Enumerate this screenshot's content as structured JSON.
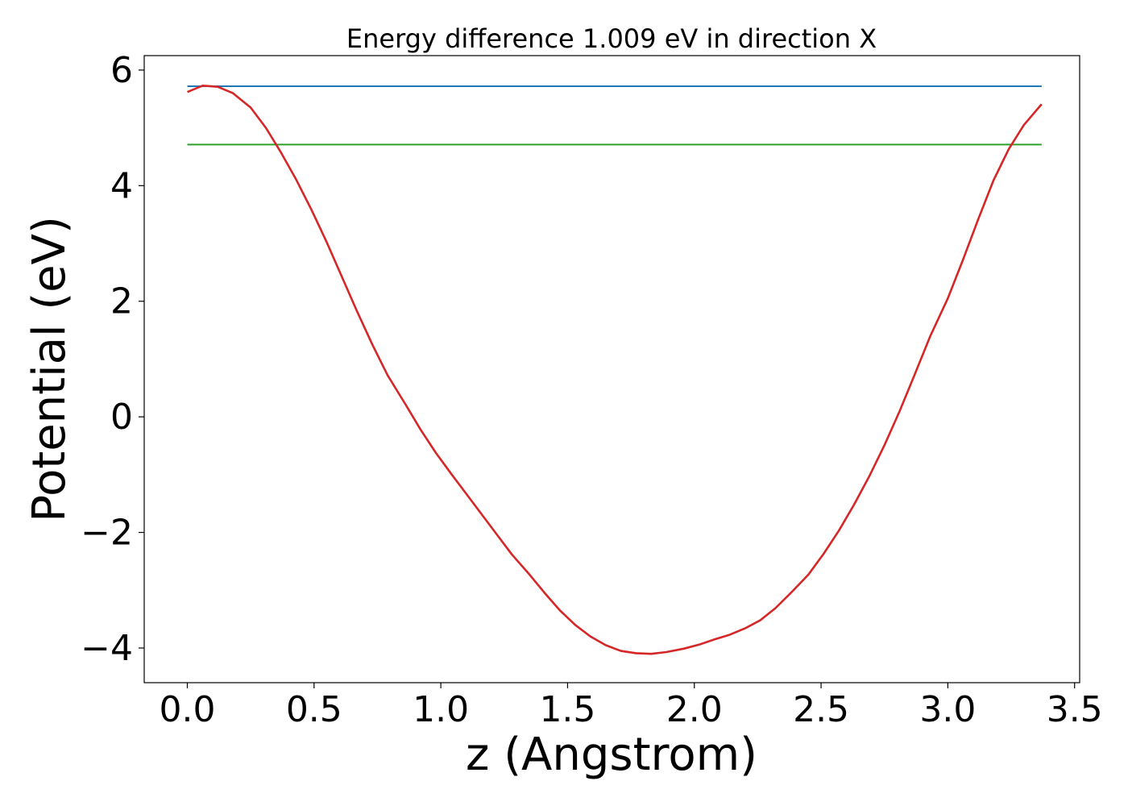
{
  "chart_data": {
    "type": "line",
    "title": "Energy difference 1.009 eV in direction X",
    "xlabel": "z (Angstrom)",
    "ylabel": "Potential (eV)",
    "xlim": [
      -0.17,
      3.52
    ],
    "ylim": [
      -4.6,
      6.25
    ],
    "x_ticks": [
      0.0,
      0.5,
      1.0,
      1.5,
      2.0,
      2.5,
      3.0,
      3.5
    ],
    "x_tick_labels": [
      "0.0",
      "0.5",
      "1.0",
      "1.5",
      "2.0",
      "2.5",
      "3.0",
      "3.5"
    ],
    "y_ticks": [
      -4,
      -2,
      0,
      2,
      4,
      6
    ],
    "y_tick_labels": [
      "−4",
      "−2",
      "0",
      "2",
      "4",
      "6"
    ],
    "grid": false,
    "series": [
      {
        "color": "#1f77b4",
        "x": [
          0.0,
          3.37
        ],
        "y": [
          5.72,
          5.72
        ]
      },
      {
        "color": "#2ca02c",
        "x": [
          0.0,
          3.37
        ],
        "y": [
          4.71,
          4.71
        ]
      },
      {
        "color": "#d62728",
        "x": [
          0.0,
          0.06,
          0.12,
          0.18,
          0.25,
          0.31,
          0.37,
          0.43,
          0.49,
          0.55,
          0.61,
          0.67,
          0.73,
          0.79,
          0.86,
          0.92,
          0.98,
          1.04,
          1.1,
          1.16,
          1.22,
          1.28,
          1.35,
          1.41,
          1.47,
          1.53,
          1.59,
          1.65,
          1.71,
          1.77,
          1.83,
          1.89,
          1.96,
          2.02,
          2.08,
          2.14,
          2.2,
          2.26,
          2.32,
          2.38,
          2.45,
          2.51,
          2.57,
          2.63,
          2.69,
          2.75,
          2.81,
          2.87,
          2.93,
          3.0,
          3.06,
          3.12,
          3.18,
          3.24,
          3.3,
          3.37
        ],
        "y": [
          5.62,
          5.73,
          5.71,
          5.6,
          5.35,
          5.0,
          4.57,
          4.1,
          3.58,
          3.02,
          2.42,
          1.82,
          1.25,
          0.72,
          0.22,
          -0.22,
          -0.62,
          -0.98,
          -1.33,
          -1.68,
          -2.03,
          -2.38,
          -2.73,
          -3.05,
          -3.35,
          -3.6,
          -3.8,
          -3.95,
          -4.05,
          -4.09,
          -4.1,
          -4.07,
          -4.01,
          -3.94,
          -3.85,
          -3.77,
          -3.66,
          -3.52,
          -3.31,
          -3.05,
          -2.73,
          -2.37,
          -1.97,
          -1.52,
          -1.03,
          -0.49,
          0.1,
          0.74,
          1.39,
          2.05,
          2.72,
          3.42,
          4.09,
          4.63,
          5.05,
          5.41
        ]
      }
    ]
  }
}
